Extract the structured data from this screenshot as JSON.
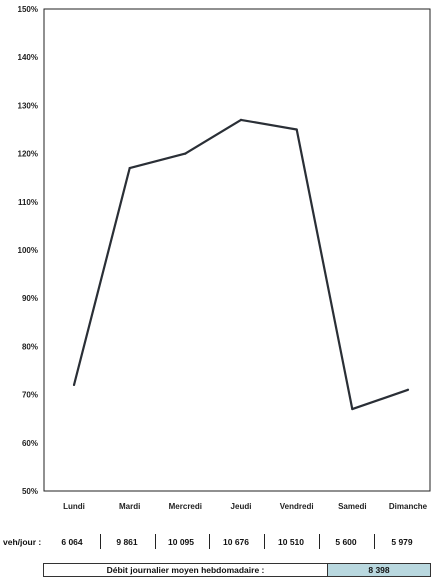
{
  "chart_data": {
    "type": "line",
    "categories": [
      "Lundi",
      "Mardi",
      "Mercredi",
      "Jeudi",
      "Vendredi",
      "Samedi",
      "Dimanche"
    ],
    "series": [
      {
        "values": [
          72,
          117,
          120,
          127,
          125,
          67,
          71
        ]
      }
    ],
    "yticks": [
      "150%",
      "140%",
      "130%",
      "120%",
      "110%",
      "100%",
      "90%",
      "80%",
      "70%",
      "60%",
      "50%"
    ],
    "ylim": [
      50,
      150
    ],
    "ystep": 10,
    "grid": false,
    "line_color": "#2a2f36"
  },
  "vehicles": {
    "label": "veh/jour :",
    "values": [
      "6 064",
      "9 861",
      "10 095",
      "10 676",
      "10 510",
      "5 600",
      "5 979"
    ]
  },
  "summary": {
    "label": "Débit journalier moyen hebdomadaire :",
    "value": "8 398",
    "value_bg": "#b9d8df"
  }
}
